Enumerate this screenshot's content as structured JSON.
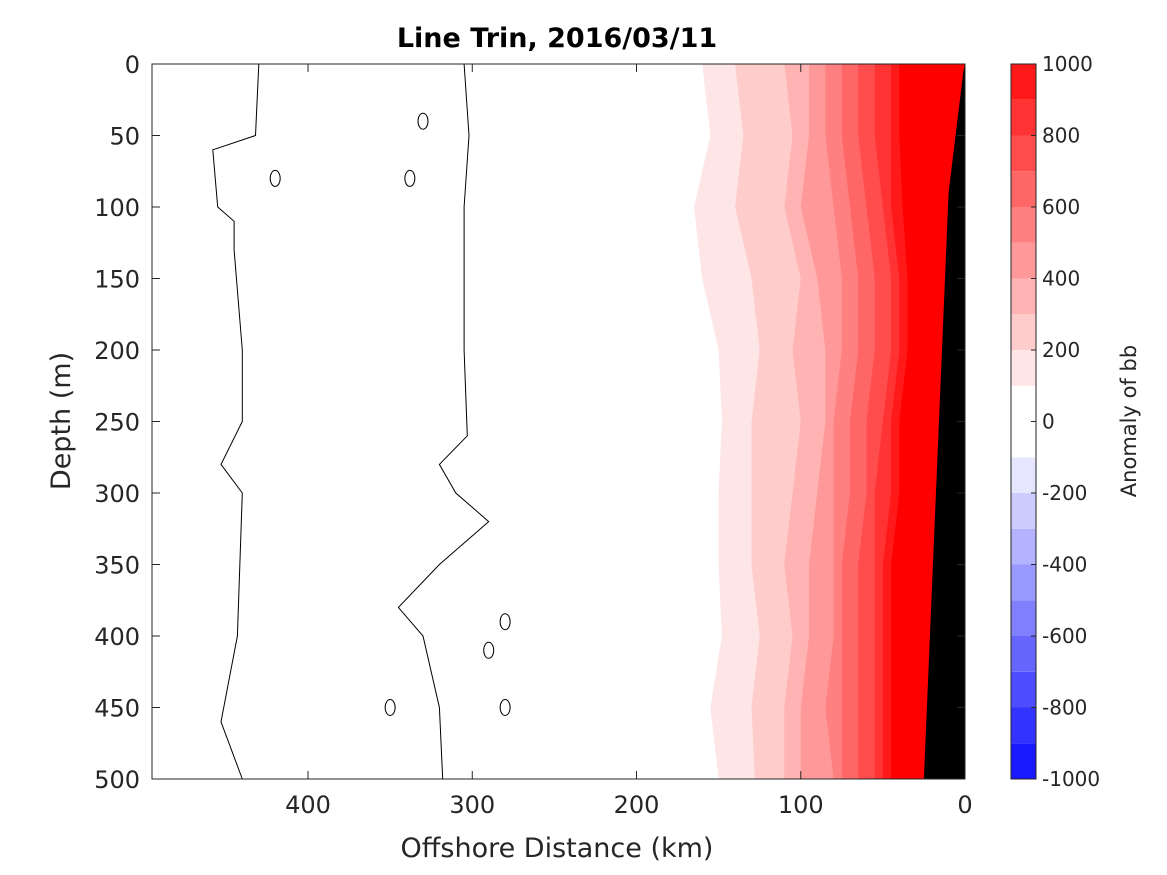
{
  "chart_data": {
    "type": "heatmap",
    "title": "Line Trin, 2016/03/11",
    "xlabel": "Offshore Distance (km)",
    "ylabel": "Depth (m)",
    "x_reversed": true,
    "y_reversed": true,
    "xlim": [
      0,
      495
    ],
    "ylim": [
      0,
      500
    ],
    "x_ticks": [
      400,
      300,
      200,
      100,
      0
    ],
    "y_ticks": [
      0,
      50,
      100,
      150,
      200,
      250,
      300,
      350,
      400,
      450,
      500
    ],
    "colorbar": {
      "label": "Anomaly of bb",
      "ticks": [
        1000,
        800,
        600,
        400,
        200,
        0,
        -200,
        -400,
        -600,
        -800,
        -1000
      ],
      "range": [
        -1000,
        1000
      ],
      "levels": [
        -1000,
        -900,
        -800,
        -700,
        -600,
        -500,
        -400,
        -300,
        -200,
        -100,
        0,
        100,
        200,
        300,
        400,
        500,
        600,
        700,
        800,
        900,
        1000
      ],
      "negative_color": "#0000ff",
      "positive_color": "#ff0000",
      "zero_color": "#ffffff"
    },
    "contour_lines_km": [
      {
        "name": "left",
        "x_at_depth": [
          [
            0,
            430
          ],
          [
            50,
            432
          ],
          [
            60,
            458
          ],
          [
            100,
            455
          ],
          [
            110,
            445
          ],
          [
            130,
            445
          ],
          [
            200,
            440
          ],
          [
            250,
            440
          ],
          [
            280,
            453
          ],
          [
            300,
            440
          ],
          [
            400,
            443
          ],
          [
            460,
            453
          ],
          [
            500,
            440
          ]
        ]
      },
      {
        "name": "middle",
        "x_at_depth": [
          [
            0,
            305
          ],
          [
            50,
            302
          ],
          [
            100,
            305
          ],
          [
            200,
            305
          ],
          [
            260,
            303
          ],
          [
            280,
            320
          ],
          [
            300,
            310
          ],
          [
            320,
            290
          ],
          [
            350,
            320
          ],
          [
            380,
            345
          ],
          [
            400,
            330
          ],
          [
            450,
            320
          ],
          [
            500,
            318
          ]
        ]
      }
    ],
    "anomaly_profile": {
      "depth_m": [
        0,
        50,
        100,
        150,
        200,
        250,
        300,
        350,
        400,
        450,
        500
      ],
      "boundary_100_km": [
        160,
        155,
        165,
        160,
        150,
        148,
        150,
        150,
        148,
        155,
        150
      ],
      "boundary_200_km": [
        140,
        135,
        140,
        130,
        125,
        130,
        130,
        130,
        125,
        130,
        128
      ],
      "boundary_300_km": [
        110,
        105,
        110,
        100,
        105,
        100,
        105,
        110,
        105,
        110,
        110
      ],
      "boundary_400_km": [
        95,
        95,
        100,
        90,
        85,
        85,
        90,
        95,
        95,
        100,
        100
      ],
      "boundary_500_km": [
        85,
        85,
        80,
        75,
        75,
        80,
        80,
        80,
        80,
        85,
        80
      ],
      "boundary_600_km": [
        75,
        75,
        70,
        65,
        65,
        70,
        70,
        75,
        75,
        75,
        75
      ],
      "boundary_700_km": [
        65,
        65,
        60,
        55,
        55,
        60,
        60,
        65,
        65,
        65,
        65
      ],
      "boundary_800_km": [
        55,
        55,
        50,
        45,
        45,
        50,
        55,
        55,
        55,
        55,
        55
      ],
      "boundary_900_km": [
        45,
        45,
        45,
        40,
        40,
        45,
        45,
        50,
        50,
        50,
        50
      ],
      "boundary_1000_km": [
        40,
        40,
        38,
        35,
        35,
        40,
        40,
        45,
        45,
        45,
        45
      ]
    },
    "land_mask_km": [
      [
        0,
        0
      ],
      [
        0,
        500
      ],
      [
        25,
        500
      ]
    ]
  }
}
